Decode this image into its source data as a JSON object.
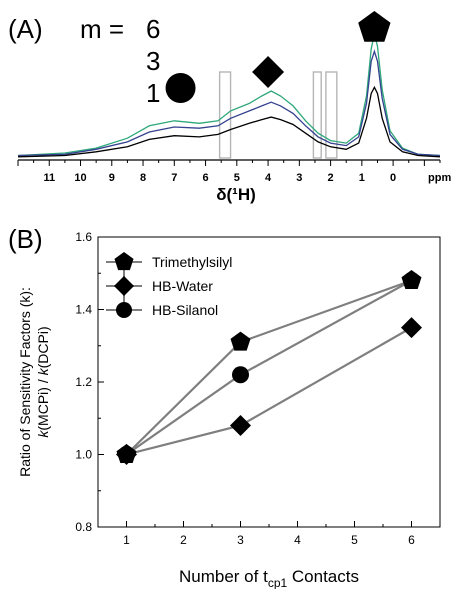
{
  "chart_data": [
    {
      "panel_label": "(A)",
      "type": "line",
      "m_label": "m =",
      "m_values": [
        "6",
        "3",
        "1"
      ],
      "xlabel": "δ(¹H)",
      "x_unit": "ppm",
      "xlim": [
        12,
        -1.5
      ],
      "x_ticks": [
        "11",
        "10",
        "9",
        "8",
        "7",
        "6",
        "5",
        "4",
        "3",
        "2",
        "1",
        "0"
      ],
      "series": [
        {
          "name": "6",
          "color": "#2ea87a",
          "x": [
            12,
            10.5,
            9.5,
            8.5,
            7.8,
            7,
            6.2,
            5.6,
            5.2,
            4.6,
            4.2,
            3.9,
            3.6,
            3.2,
            2.8,
            2.4,
            2,
            1.5,
            1.1,
            0.85,
            0.7,
            0.6,
            0.5,
            0.35,
            0.1,
            -0.3,
            -0.8,
            -1.5
          ],
          "y": [
            0.02,
            0.04,
            0.08,
            0.16,
            0.26,
            0.3,
            0.28,
            0.3,
            0.38,
            0.44,
            0.5,
            0.54,
            0.5,
            0.42,
            0.3,
            0.2,
            0.14,
            0.12,
            0.2,
            0.5,
            0.88,
            1.0,
            0.9,
            0.55,
            0.22,
            0.08,
            0.03,
            0.02
          ]
        },
        {
          "name": "3",
          "color": "#34428f",
          "x": [
            12,
            10.5,
            9.5,
            8.5,
            7.8,
            7,
            6.2,
            5.6,
            5.2,
            4.6,
            4.2,
            3.9,
            3.6,
            3.2,
            2.8,
            2.4,
            2,
            1.5,
            1.1,
            0.85,
            0.7,
            0.6,
            0.5,
            0.35,
            0.1,
            -0.3,
            -0.8,
            -1.5
          ],
          "y": [
            0.02,
            0.03,
            0.07,
            0.13,
            0.21,
            0.25,
            0.24,
            0.26,
            0.32,
            0.38,
            0.42,
            0.45,
            0.42,
            0.36,
            0.26,
            0.17,
            0.12,
            0.1,
            0.17,
            0.44,
            0.78,
            0.86,
            0.78,
            0.48,
            0.19,
            0.07,
            0.03,
            0.02
          ]
        },
        {
          "name": "1",
          "color": "#000000",
          "x": [
            12,
            10.5,
            9.5,
            8.5,
            7.8,
            7,
            6.2,
            5.6,
            5.2,
            4.6,
            4.2,
            3.9,
            3.6,
            3.2,
            2.8,
            2.4,
            2,
            1.5,
            1.1,
            0.85,
            0.7,
            0.6,
            0.5,
            0.35,
            0.1,
            -0.3,
            -0.8,
            -1.5
          ],
          "y": [
            0.01,
            0.02,
            0.05,
            0.09,
            0.15,
            0.18,
            0.17,
            0.19,
            0.23,
            0.28,
            0.31,
            0.33,
            0.31,
            0.27,
            0.2,
            0.13,
            0.09,
            0.07,
            0.12,
            0.32,
            0.52,
            0.57,
            0.52,
            0.32,
            0.13,
            0.05,
            0.02,
            0.01
          ]
        }
      ],
      "highlight_boxes_ppm": [
        [
          5.55,
          5.2
        ],
        [
          2.55,
          2.3
        ],
        [
          2.15,
          1.8
        ]
      ],
      "peak_markers": [
        {
          "shape": "circle",
          "ppm": 6.8
        },
        {
          "shape": "diamond",
          "ppm": 4.0
        },
        {
          "shape": "pentagon",
          "ppm": 0.6
        }
      ],
      "grid": false
    },
    {
      "panel_label": "(B)",
      "type": "line",
      "ylabel_line1": "Ratio of Sensitivity Factors (k):",
      "ylabel_line2_parts": [
        "k",
        "(MCPi) / ",
        "k",
        "(DCPi)"
      ],
      "xlabel_parts": [
        "Number of t",
        "cp1",
        " Contacts"
      ],
      "xlim": [
        0.5,
        6.5
      ],
      "ylim": [
        0.8,
        1.6
      ],
      "x_ticks": [
        "1",
        "2",
        "3",
        "4",
        "5",
        "6"
      ],
      "y_ticks": [
        "0.8",
        "1.0",
        "1.2",
        "1.4",
        "1.6"
      ],
      "series": [
        {
          "name": "Trimethylsilyl",
          "marker": "pentagon",
          "x": [
            1,
            3,
            6
          ],
          "y": [
            1.0,
            1.31,
            1.48
          ]
        },
        {
          "name": "HB-Water",
          "marker": "diamond",
          "x": [
            1,
            3,
            6
          ],
          "y": [
            1.0,
            1.08,
            1.35
          ]
        },
        {
          "name": "HB-Silanol",
          "marker": "circle",
          "x": [
            1,
            3,
            6
          ],
          "y": [
            1.0,
            1.22,
            1.48
          ]
        }
      ],
      "legend_position": "top-left",
      "line_color": "#7f7f7f",
      "grid": false
    }
  ]
}
